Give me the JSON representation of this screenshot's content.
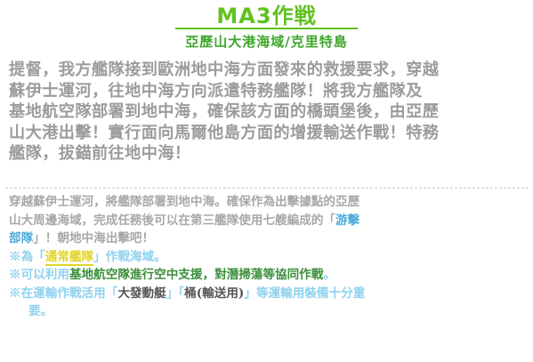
{
  "header": {
    "title": "MA3作戦",
    "subtitle": "亞歷山大港海域/克里特島"
  },
  "briefing": {
    "lines": [
      "提督，我方艦隊接到歐洲地中海方面發來的救援要求，穿越",
      "蘇伊士運河，往地中海方向派遣特務艦隊！將我方艦隊及",
      "基地航空隊部署到地中海，確保該方面的橋頭堡後，由亞歷",
      "山大港出擊！實行面向馬爾他島方面的增援輸送作戰！特務",
      "艦隊，拔錨前往地中海！"
    ]
  },
  "details": {
    "line1": "穿越蘇伊士運河，將艦隊部署到地中海。確保作為出擊據點的亞歷",
    "line2_prefix": "山大周邊海域，完成任務後可以在第三艦隊使用七艘編成的「",
    "line2_highlight": "游擊",
    "line3_highlight": "部隊",
    "line3_suffix": "」！朝地中海出擊吧！",
    "note1_prefix": "※為「",
    "note1_highlight": "通常艦隊",
    "note1_suffix": "」作戰海域。",
    "note2_prefix": "※可以利用",
    "note2_strong": "基地航空隊進行空中支援，對潛掃蕩等協同作戰",
    "note2_suffix": "。",
    "note3_prefix": "※在運輸作戰活用「",
    "note3_item1": "大發動艇",
    "note3_mid": "」「",
    "note3_item2": "桶(輸送用)",
    "note3_suffix": "」等運輸用裝備十分重",
    "note3_end": "要。"
  },
  "colors": {
    "title": "#5fc21f",
    "subtitle": "#3da62a",
    "body_text": "#9c9c9c",
    "highlight_blue": "#4ea9d8",
    "highlight_yellow": "#e0d425",
    "note_cyan": "#8fd2ee",
    "note_green": "#3b8f3b"
  }
}
